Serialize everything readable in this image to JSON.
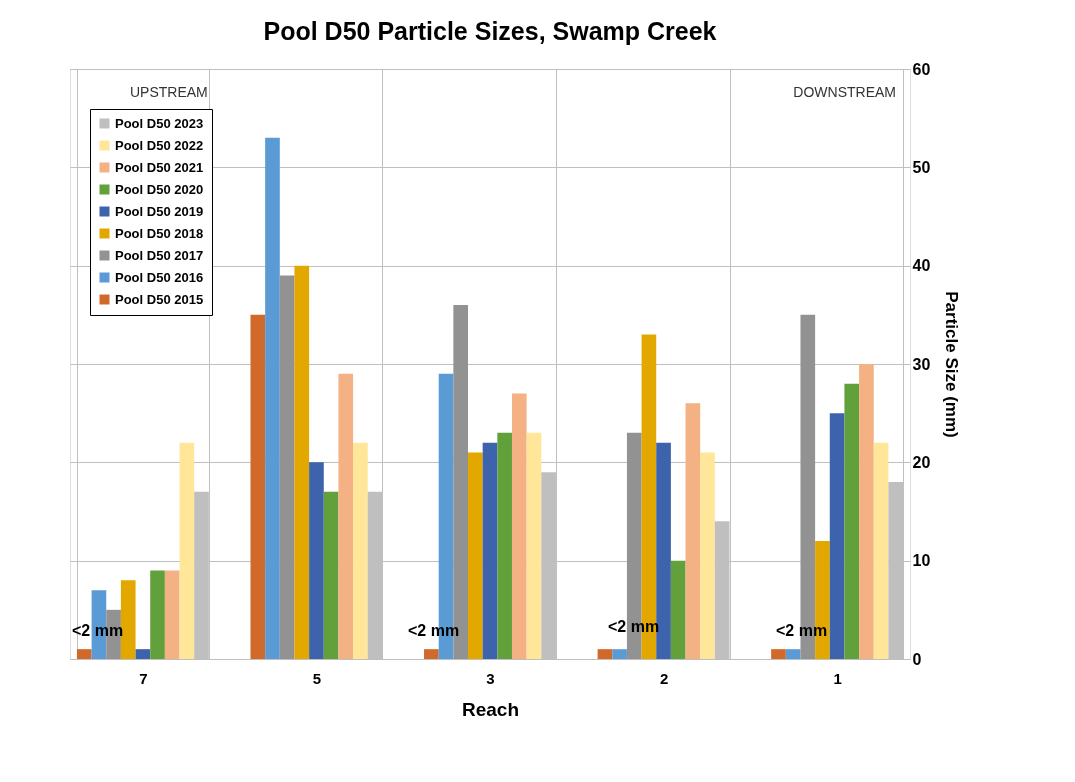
{
  "chart_data": {
    "type": "bar",
    "title": "Pool D50 Particle Sizes, Swamp Creek",
    "xlabel": "Reach",
    "ylabel": "Particle Size (mm)",
    "categories": [
      "7",
      "5",
      "3",
      "2",
      "1"
    ],
    "series": [
      {
        "name": "Pool D50 2015",
        "color": "#d0692a",
        "values": [
          1,
          35,
          1,
          1,
          1
        ]
      },
      {
        "name": "Pool D50 2016",
        "color": "#5b9bd5",
        "values": [
          7,
          53,
          29,
          1,
          1
        ]
      },
      {
        "name": "Pool D50 2017",
        "color": "#929292",
        "values": [
          5,
          39,
          36,
          23,
          35
        ]
      },
      {
        "name": "Pool D50 2018",
        "color": "#e2a800",
        "values": [
          8,
          40,
          21,
          33,
          12
        ]
      },
      {
        "name": "Pool D50 2019",
        "color": "#3d63ad",
        "values": [
          1,
          20,
          22,
          22,
          25
        ]
      },
      {
        "name": "Pool D50 2020",
        "color": "#62a03c",
        "values": [
          9,
          17,
          23,
          10,
          28
        ]
      },
      {
        "name": "Pool D50 2021",
        "color": "#f4b183",
        "values": [
          9,
          29,
          27,
          26,
          30
        ]
      },
      {
        "name": "Pool D50 2022",
        "color": "#ffe699",
        "values": [
          22,
          22,
          23,
          21,
          22
        ]
      },
      {
        "name": "Pool D50 2023",
        "color": "#bfbfbf",
        "values": [
          17,
          17,
          19,
          14,
          18
        ]
      }
    ],
    "ylim": [
      0,
      60
    ],
    "yticks": [
      0,
      10,
      20,
      30,
      40,
      50,
      60
    ],
    "grid": true,
    "legend": "top left",
    "annotations": [
      "UPSTREAM",
      "DOWNSTREAM",
      "<2 mm",
      "<2 mm",
      "<2 mm",
      "<2 mm"
    ]
  }
}
